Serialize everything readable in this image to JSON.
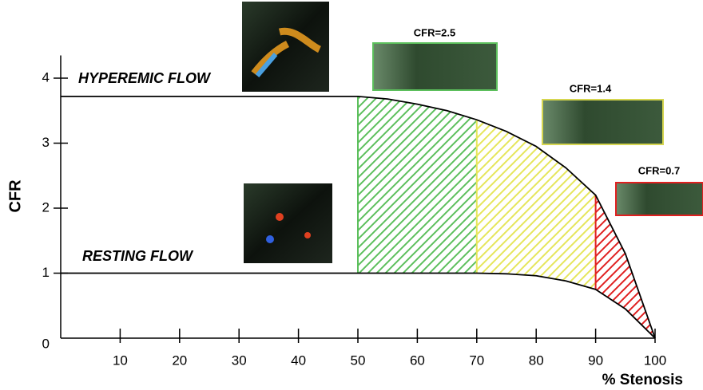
{
  "chart_data": {
    "type": "line",
    "x": [
      0,
      50,
      55,
      60,
      65,
      70,
      75,
      80,
      85,
      90,
      95,
      100
    ],
    "series": [
      {
        "name": "HYPEREMIC FLOW",
        "color": "#000000",
        "values": [
          3.72,
          3.72,
          3.68,
          3.6,
          3.5,
          3.36,
          3.18,
          2.95,
          2.62,
          2.2,
          1.3,
          0
        ]
      },
      {
        "name": "RESTING FLOW",
        "color": "#000000",
        "values": [
          1,
          1,
          1,
          1,
          1,
          1,
          0.99,
          0.96,
          0.88,
          0.75,
          0.45,
          0
        ]
      }
    ],
    "zones": [
      {
        "from": 50,
        "to": 70,
        "color": "#5cbf5c"
      },
      {
        "from": 70,
        "to": 90,
        "color": "#e6e65a"
      },
      {
        "from": 90,
        "to": 100,
        "color": "#e02020"
      }
    ],
    "annotations": [
      "CFR=2.5",
      "CFR=1.4",
      "CFR=0.7"
    ],
    "xlabel": "% Stenosis",
    "ylabel": "CFR",
    "xlim": [
      0,
      100
    ],
    "ylim": [
      0,
      4.35
    ],
    "xticks": [
      10,
      20,
      30,
      40,
      50,
      60,
      70,
      80,
      90,
      100
    ],
    "yticks": [
      0,
      1,
      2,
      3,
      4
    ]
  }
}
